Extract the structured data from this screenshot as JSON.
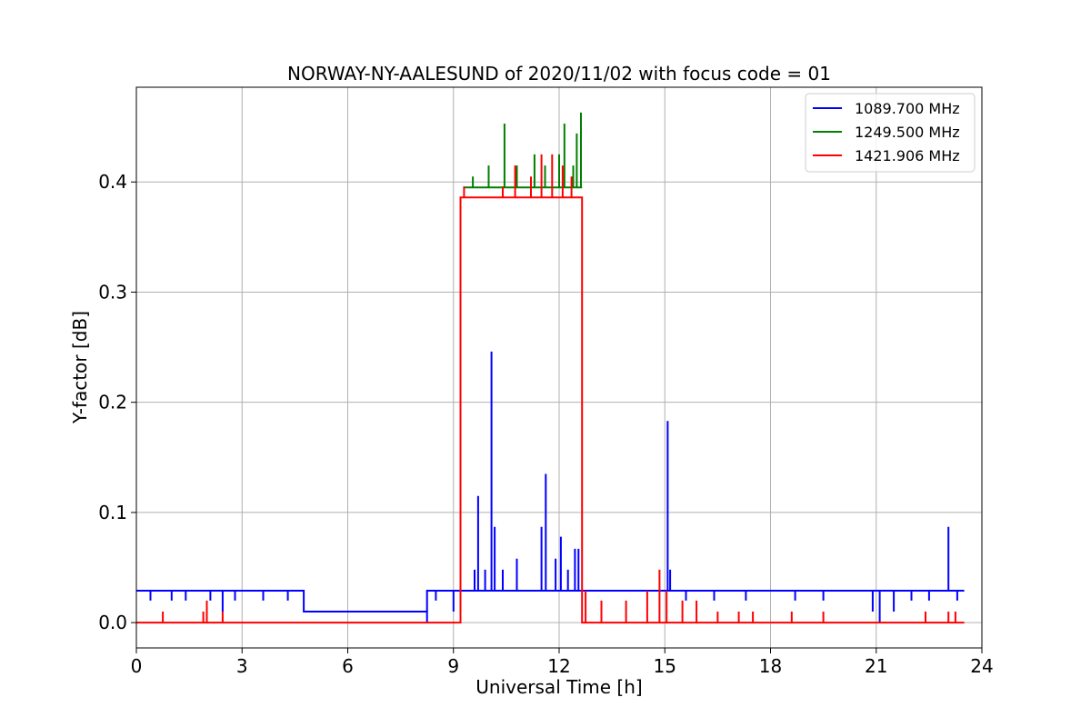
{
  "chart_data": {
    "type": "line",
    "title": "NORWAY-NY-AALESUND of 2020/11/02 with focus code = 01",
    "xlabel": "Universal Time [h]",
    "ylabel": "Y-factor [dB]",
    "xlim": [
      0,
      24
    ],
    "ylim": [
      -0.023,
      0.486
    ],
    "xticks": [
      0,
      3,
      6,
      9,
      12,
      15,
      18,
      21,
      24
    ],
    "xtick_labels": [
      "0",
      "3",
      "6",
      "9",
      "12",
      "15",
      "18",
      "21",
      "24"
    ],
    "yticks": [
      0.0,
      0.1,
      0.2,
      0.3,
      0.4
    ],
    "ytick_labels": [
      "0.0",
      "0.1",
      "0.2",
      "0.3",
      "0.4"
    ],
    "grid": true,
    "legend_position": "top-right",
    "series": [
      {
        "name": "1089.700 MHz",
        "color": "#0000ff",
        "x": [
          0,
          0.4,
          0.4,
          0.4,
          1.0,
          1.0,
          1.0,
          1.4,
          1.4,
          1.4,
          2.1,
          2.1,
          2.1,
          2.45,
          2.45,
          2.45,
          2.8,
          2.8,
          2.8,
          3.6,
          3.6,
          3.6,
          4.3,
          4.3,
          4.3,
          4.75,
          4.75,
          8.25,
          8.25,
          8.25,
          8.25,
          8.5,
          8.5,
          8.5,
          9.0,
          9.0,
          9.0,
          9.2,
          9.2,
          9.2,
          9.6,
          9.6,
          9.6,
          9.7,
          9.7,
          9.7,
          9.9,
          9.9,
          9.9,
          10.08,
          10.08,
          10.08,
          10.17,
          10.17,
          10.17,
          10.4,
          10.4,
          10.4,
          10.8,
          10.8,
          10.8,
          11.5,
          11.5,
          11.5,
          11.62,
          11.62,
          11.62,
          11.9,
          11.9,
          11.9,
          12.05,
          12.05,
          12.05,
          12.25,
          12.25,
          12.25,
          12.45,
          12.45,
          12.45,
          12.55,
          12.55,
          12.55,
          12.65,
          12.65,
          15.08,
          15.08,
          15.08,
          15.15,
          15.15,
          15.15,
          15.6,
          15.6,
          15.6,
          16.4,
          16.4,
          16.4,
          17.3,
          17.3,
          17.3,
          18.7,
          18.7,
          18.7,
          19.5,
          19.5,
          19.5,
          20.9,
          20.9,
          20.9,
          21.1,
          21.1,
          21.1,
          21.5,
          21.5,
          21.5,
          22.0,
          22.0,
          22.0,
          22.5,
          22.5,
          22.5,
          23.05,
          23.05,
          23.05,
          23.3,
          23.3,
          23.3,
          23.5
        ],
        "y": [
          0.029,
          0.029,
          0.02,
          0.029,
          0.029,
          0.02,
          0.029,
          0.029,
          0.02,
          0.029,
          0.029,
          0.02,
          0.029,
          0.029,
          0.01,
          0.029,
          0.029,
          0.02,
          0.029,
          0.029,
          0.02,
          0.029,
          0.029,
          0.02,
          0.029,
          0.029,
          0.01,
          0.01,
          0.0,
          0.029,
          0.029,
          0.029,
          0.02,
          0.029,
          0.029,
          0.01,
          0.029,
          0.029,
          0.038,
          0.029,
          0.029,
          0.048,
          0.029,
          0.029,
          0.115,
          0.029,
          0.029,
          0.048,
          0.029,
          0.029,
          0.246,
          0.029,
          0.029,
          0.087,
          0.029,
          0.029,
          0.048,
          0.029,
          0.029,
          0.058,
          0.029,
          0.029,
          0.087,
          0.029,
          0.029,
          0.135,
          0.029,
          0.029,
          0.058,
          0.029,
          0.029,
          0.078,
          0.029,
          0.029,
          0.048,
          0.029,
          0.029,
          0.067,
          0.029,
          0.029,
          0.067,
          0.029,
          0.029,
          0.029,
          0.029,
          0.183,
          0.029,
          0.029,
          0.048,
          0.029,
          0.029,
          0.02,
          0.029,
          0.029,
          0.02,
          0.029,
          0.029,
          0.02,
          0.029,
          0.029,
          0.02,
          0.029,
          0.029,
          0.02,
          0.029,
          0.029,
          0.01,
          0.029,
          0.029,
          0.0,
          0.029,
          0.029,
          0.01,
          0.029,
          0.029,
          0.02,
          0.029,
          0.029,
          0.02,
          0.029,
          0.029,
          0.087,
          0.029,
          0.029,
          0.02,
          0.029,
          0.029
        ]
      },
      {
        "name": "1249.500 MHz",
        "color": "#008000",
        "x": [
          9.3,
          9.3,
          9.3,
          9.55,
          9.55,
          9.55,
          9.7,
          9.7,
          9.7,
          10.0,
          10.0,
          10.0,
          10.45,
          10.45,
          10.45,
          10.8,
          10.8,
          10.8,
          11.3,
          11.3,
          11.3,
          11.6,
          11.6,
          11.6,
          12.0,
          12.0,
          12.0,
          12.15,
          12.15,
          12.15,
          12.4,
          12.4,
          12.4,
          12.5,
          12.5,
          12.5,
          12.62,
          12.62,
          12.62,
          12.65
        ],
        "y": [
          0.395,
          0.395,
          0.395,
          0.395,
          0.405,
          0.395,
          0.395,
          0.395,
          0.395,
          0.395,
          0.415,
          0.395,
          0.395,
          0.453,
          0.395,
          0.395,
          0.415,
          0.395,
          0.395,
          0.425,
          0.395,
          0.395,
          0.415,
          0.395,
          0.395,
          0.425,
          0.395,
          0.395,
          0.453,
          0.395,
          0.395,
          0.415,
          0.395,
          0.395,
          0.444,
          0.395,
          0.395,
          0.463,
          0.395,
          0.395
        ]
      },
      {
        "name": "1421.906 MHz",
        "color": "#ff0000",
        "x": [
          0,
          0.75,
          0.75,
          0.75,
          1.9,
          1.9,
          1.9,
          2.0,
          2.0,
          2.0,
          2.45,
          2.45,
          2.45,
          9.2,
          9.2,
          9.3,
          9.3,
          9.3,
          10.4,
          10.4,
          10.4,
          10.75,
          10.75,
          10.75,
          11.2,
          11.2,
          11.2,
          11.5,
          11.5,
          11.5,
          11.8,
          11.8,
          11.8,
          12.1,
          12.1,
          12.1,
          12.35,
          12.35,
          12.35,
          12.65,
          12.65,
          12.75,
          12.75,
          12.75,
          13.2,
          13.2,
          13.2,
          13.9,
          13.9,
          13.9,
          14.5,
          14.5,
          14.5,
          14.85,
          14.85,
          14.85,
          15.05,
          15.05,
          15.05,
          15.5,
          15.5,
          15.5,
          15.9,
          15.9,
          15.9,
          16.5,
          16.5,
          16.5,
          17.1,
          17.1,
          17.1,
          17.5,
          17.5,
          17.5,
          18.6,
          18.6,
          18.6,
          19.5,
          19.5,
          19.5,
          22.4,
          22.4,
          22.4,
          23.05,
          23.05,
          23.05,
          23.25,
          23.25,
          23.25,
          23.5
        ],
        "y": [
          0.0,
          0.0,
          0.01,
          0.0,
          0.0,
          0.01,
          0.0,
          0.0,
          0.02,
          0.0,
          0.0,
          0.01,
          0.0,
          0.0,
          0.386,
          0.386,
          0.396,
          0.386,
          0.386,
          0.396,
          0.386,
          0.386,
          0.415,
          0.386,
          0.386,
          0.405,
          0.386,
          0.386,
          0.425,
          0.386,
          0.386,
          0.425,
          0.386,
          0.386,
          0.415,
          0.386,
          0.386,
          0.405,
          0.386,
          0.386,
          0.0,
          0.0,
          0.029,
          0.0,
          0.0,
          0.02,
          0.0,
          0.0,
          0.02,
          0.0,
          0.0,
          0.029,
          0.0,
          0.0,
          0.048,
          0.0,
          0.0,
          0.029,
          0.0,
          0.0,
          0.02,
          0.0,
          0.0,
          0.02,
          0.0,
          0.0,
          0.01,
          0.0,
          0.0,
          0.01,
          0.0,
          0.0,
          0.01,
          0.0,
          0.0,
          0.01,
          0.0,
          0.0,
          0.01,
          0.0,
          0.0,
          0.01,
          0.0,
          0.0,
          0.01,
          0.0,
          0.0,
          0.01,
          0.0,
          0.0
        ]
      }
    ]
  }
}
